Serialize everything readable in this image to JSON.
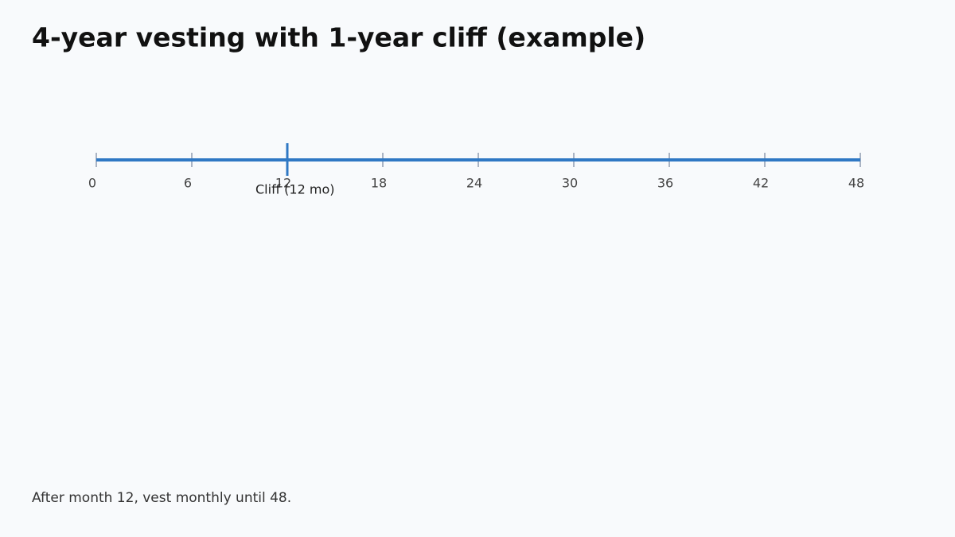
{
  "chart_data": {
    "type": "timeline",
    "title": "4-year vesting with 1-year cliff (example)",
    "xlim": [
      0,
      48
    ],
    "xticks": [
      0,
      6,
      12,
      18,
      24,
      30,
      36,
      42,
      48
    ],
    "color": "#2f78c4",
    "markers": [
      {
        "value": 12,
        "label": "Cliff (12 mo)"
      }
    ],
    "note": "After month 12, vest monthly until 48."
  }
}
